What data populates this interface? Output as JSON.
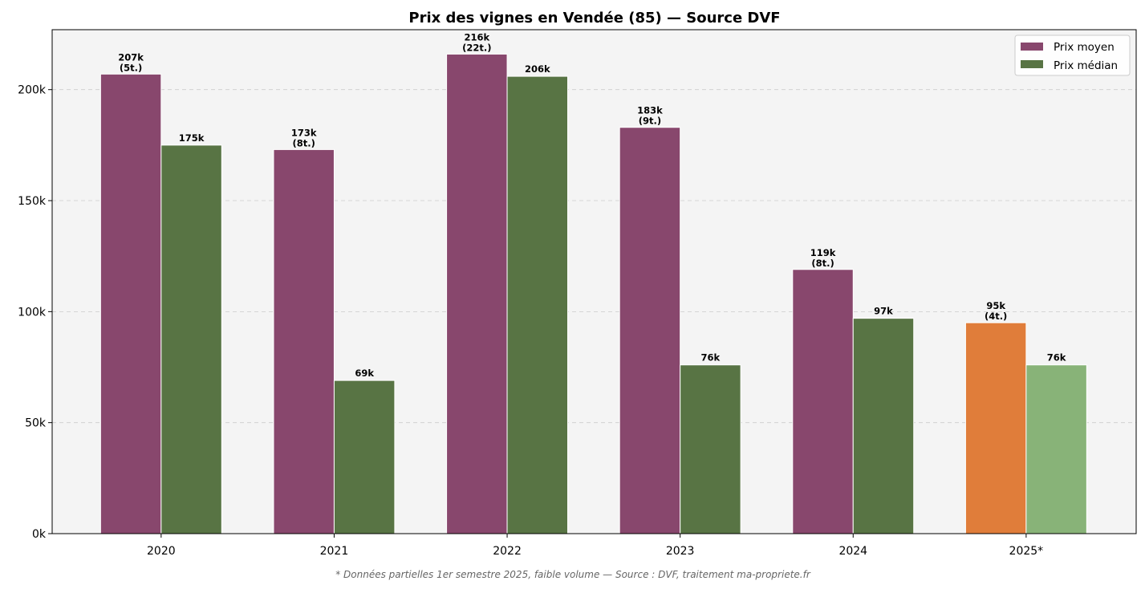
{
  "chart_data": {
    "type": "bar",
    "title": "Prix des vignes en Vendée (85) — Source DVF",
    "categories": [
      "2020",
      "2021",
      "2022",
      "2023",
      "2024",
      "2025*"
    ],
    "series": [
      {
        "name": "Prix moyen",
        "values": [
          207000,
          173000,
          216000,
          183000,
          119000,
          95000
        ],
        "labels": [
          "207k",
          "173k",
          "216k",
          "183k",
          "119k",
          "95k"
        ],
        "sublabels": [
          "(5t.)",
          "(8t.)",
          "(22t.)",
          "(9t.)",
          "(8t.)",
          "(4t.)"
        ],
        "color": "#88476d",
        "partial_color": "#e07d3a"
      },
      {
        "name": "Prix médian",
        "values": [
          175000,
          69000,
          206000,
          76000,
          97000,
          76000
        ],
        "labels": [
          "175k",
          "69k",
          "206k",
          "76k",
          "97k",
          "76k"
        ],
        "color": "#587444",
        "partial_color": "#88b378"
      }
    ],
    "partial_category": "2025*",
    "ylim": [
      0,
      227000
    ],
    "yticks": [
      0,
      50000,
      100000,
      150000,
      200000
    ],
    "ytick_labels": [
      "0k",
      "50k",
      "100k",
      "150k",
      "200k"
    ],
    "xlabel": "",
    "ylabel": "",
    "grid": "horizontal dashed",
    "legend": "top-right",
    "footnote": "* Données partielles 1er semestre 2025, faible volume — Source : DVF, traitement ma-propriete.fr"
  }
}
